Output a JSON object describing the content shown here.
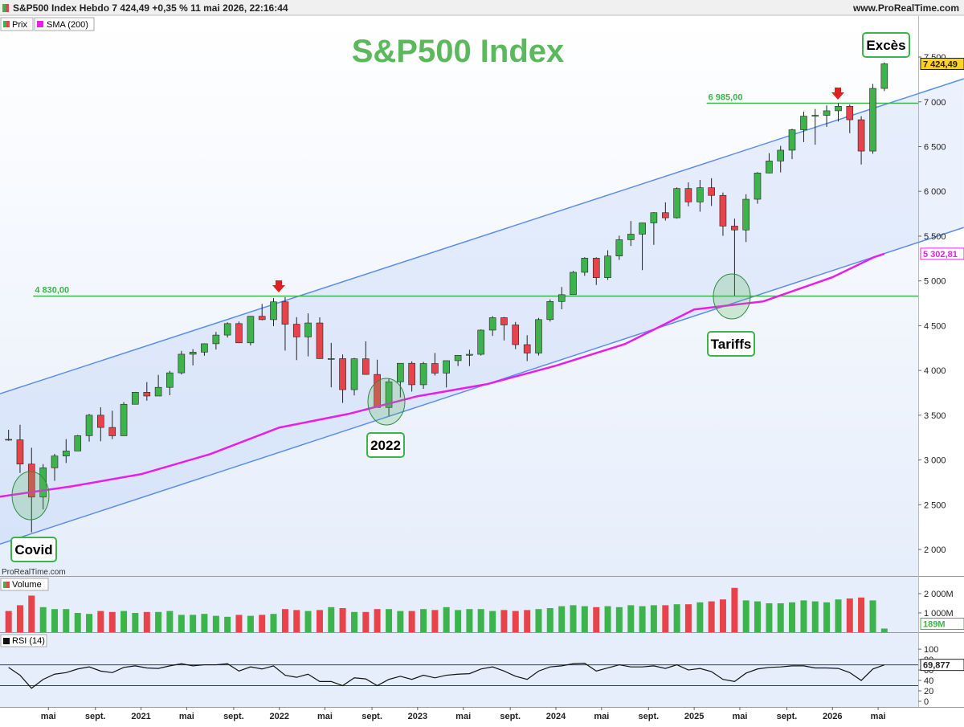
{
  "header": {
    "title": "S&P500 Index Hebdo 7 424,49 +0,35 % 11 mai 2026, 22:16:44",
    "site": "www.ProRealTime.com",
    "watermark": "ProRealTime.com"
  },
  "annotations": [
    "Covid",
    "2022",
    "Tariffs",
    "Excès"
  ],
  "chart_data": [
    {
      "type": "candlestick",
      "title": "S&P500 Index",
      "x": [
        2020.042,
        2020.125,
        2020.208,
        2020.292,
        2020.375,
        2020.458,
        2020.542,
        2020.625,
        2020.708,
        2020.792,
        2020.875,
        2020.958,
        2021.042,
        2021.125,
        2021.208,
        2021.292,
        2021.375,
        2021.458,
        2021.542,
        2021.625,
        2021.708,
        2021.792,
        2021.875,
        2021.958,
        2022.042,
        2022.125,
        2022.208,
        2022.292,
        2022.375,
        2022.458,
        2022.542,
        2022.625,
        2022.708,
        2022.792,
        2022.875,
        2022.958,
        2023.042,
        2023.125,
        2023.208,
        2023.292,
        2023.375,
        2023.458,
        2023.542,
        2023.625,
        2023.708,
        2023.792,
        2023.875,
        2023.958,
        2024.042,
        2024.125,
        2024.208,
        2024.292,
        2024.375,
        2024.458,
        2024.542,
        2024.625,
        2024.708,
        2024.792,
        2024.875,
        2024.958,
        2025.042,
        2025.125,
        2025.208,
        2025.292,
        2025.375,
        2025.458,
        2025.542,
        2025.625,
        2025.708,
        2025.792,
        2025.875,
        2025.958,
        2026.042,
        2026.125,
        2026.208,
        2026.292,
        2026.375
      ],
      "series": [
        {
          "name": "Prix",
          "up_color": "#3cb44b",
          "down_color": "#e8434a",
          "last_label": "7 424,49",
          "open": [
            3230,
            3225,
            2954,
            2585,
            2912,
            3044,
            3100,
            3271,
            3500,
            3363,
            3270,
            3622,
            3756,
            3714,
            3811,
            3973,
            4181,
            4204,
            4298,
            4395,
            4523,
            4308,
            4605,
            4567,
            4766,
            4516,
            4374,
            4530,
            4132,
            4132,
            3785,
            4130,
            3955,
            3586,
            3872,
            4080,
            3840,
            4077,
            3970,
            4109,
            4169,
            4180,
            4450,
            4589,
            4508,
            4288,
            4194,
            4568,
            4770,
            4846,
            5096,
            5254,
            5036,
            5278,
            5460,
            5522,
            5648,
            5762,
            5705,
            6032,
            5882,
            6041,
            5955,
            5612,
            5569,
            5912,
            6205,
            6339,
            6460,
            6688,
            6840,
            6849,
            6900,
            6950,
            6800,
            6450,
            7150
          ],
          "high": [
            3337,
            3393,
            3136,
            2954,
            3068,
            3233,
            3280,
            3514,
            3588,
            3550,
            3646,
            3760,
            3870,
            3950,
            3995,
            4218,
            4238,
            4302,
            4430,
            4537,
            4546,
            4608,
            4743,
            4808,
            4818,
            4595,
            4637,
            4593,
            4307,
            4178,
            4140,
            4325,
            4120,
            3906,
            4080,
            4101,
            4095,
            4195,
            4110,
            4170,
            4231,
            4458,
            4607,
            4597,
            4541,
            4393,
            4587,
            4793,
            4932,
            5111,
            5265,
            5264,
            5342,
            5505,
            5669,
            5651,
            5768,
            5878,
            6044,
            6100,
            6128,
            6147,
            5987,
            5695,
            5968,
            6215,
            6427,
            6508,
            6699,
            6890,
            6920,
            6960,
            6985,
            6970,
            6840,
            7200,
            7440
          ],
          "low": [
            3214,
            2855,
            2192,
            2447,
            2767,
            2966,
            3101,
            3205,
            3209,
            3233,
            3280,
            3633,
            3662,
            3725,
            3723,
            3955,
            4056,
            4164,
            4233,
            4367,
            4305,
            4279,
            4560,
            4495,
            4222,
            4115,
            4157,
            4129,
            3811,
            3637,
            3721,
            3955,
            3585,
            3492,
            3699,
            3764,
            3794,
            3943,
            3809,
            4049,
            4048,
            4166,
            4385,
            4335,
            4238,
            4104,
            4167,
            4546,
            4683,
            4845,
            5057,
            4954,
            5011,
            5234,
            5390,
            5120,
            5403,
            5674,
            5696,
            5832,
            5773,
            5837,
            5504,
            4835,
            5434,
            5862,
            6202,
            6212,
            6360,
            6550,
            6521,
            6720,
            6780,
            6650,
            6300,
            6420,
            7120
          ],
          "close": [
            3225,
            2954,
            2585,
            2912,
            3044,
            3100,
            3271,
            3500,
            3363,
            3270,
            3622,
            3756,
            3714,
            3811,
            3973,
            4181,
            4204,
            4298,
            4395,
            4523,
            4308,
            4605,
            4567,
            4766,
            4516,
            4374,
            4530,
            4132,
            4132,
            3785,
            4130,
            3955,
            3586,
            3872,
            4080,
            3840,
            4077,
            3970,
            4109,
            4169,
            4180,
            4450,
            4589,
            4508,
            4288,
            4194,
            4568,
            4770,
            4846,
            5096,
            5254,
            5036,
            5278,
            5460,
            5522,
            5648,
            5762,
            5705,
            6032,
            5882,
            6041,
            5955,
            5612,
            5569,
            5912,
            6205,
            6339,
            6460,
            6688,
            6840,
            6849,
            6900,
            6950,
            6800,
            6450,
            7150,
            7424.49
          ]
        },
        {
          "name": "SMA (200)",
          "color": "#e81ee8",
          "last_label": "5 302,81",
          "x": [
            2019.98,
            2020.5,
            2021,
            2021.5,
            2022,
            2022.5,
            2023,
            2023.5,
            2024,
            2024.5,
            2025,
            2025.5,
            2026,
            2026.3,
            2026.375
          ],
          "values": [
            2590,
            2706,
            2841,
            3065,
            3362,
            3514,
            3712,
            3846,
            4053,
            4295,
            4681,
            4771,
            5041,
            5265,
            5302.81
          ]
        }
      ],
      "channel": [
        {
          "x": [
            2019.98,
            2026.95
          ],
          "values": [
            3739,
            7258
          ]
        },
        {
          "x": [
            2019.98,
            2026.95
          ],
          "values": [
            2060,
            5597
          ]
        }
      ],
      "channel_color": "#5b8def",
      "levels": [
        {
          "value": 4830,
          "label": "4 830,00",
          "start": 2020.22
        },
        {
          "value": 6985,
          "label": "6 985,00",
          "start": 2025.09
        }
      ],
      "level_color": "#3cb44b",
      "xlim": [
        2019.98,
        2026.62
      ],
      "ylim": [
        1704,
        7958
      ],
      "yticks": [
        {
          "value": 2000,
          "label": "2 000"
        },
        {
          "value": 2500,
          "label": "2 500"
        },
        {
          "value": 3000,
          "label": "3 000"
        },
        {
          "value": 3500,
          "label": "3 500"
        },
        {
          "value": 4000,
          "label": "4 000"
        },
        {
          "value": 4500,
          "label": "4 500"
        },
        {
          "value": 5000,
          "label": "5 000"
        },
        {
          "value": 5500,
          "label": "5 500"
        },
        {
          "value": 6000,
          "label": "6 000"
        },
        {
          "value": 6500,
          "label": "6 500"
        },
        {
          "value": 7000,
          "label": "7 000"
        },
        {
          "value": 7500,
          "label": "7 500"
        }
      ]
    },
    {
      "type": "bar",
      "title": "Volume",
      "up_color": "#3cb44b",
      "down_color": "#e8434a",
      "last_label": "189M",
      "x": [
        2020.042,
        2020.125,
        2020.208,
        2020.292,
        2020.375,
        2020.458,
        2020.542,
        2020.625,
        2020.708,
        2020.792,
        2020.875,
        2020.958,
        2021.042,
        2021.125,
        2021.208,
        2021.292,
        2021.375,
        2021.458,
        2021.542,
        2021.625,
        2021.708,
        2021.792,
        2021.875,
        2021.958,
        2022.042,
        2022.125,
        2022.208,
        2022.292,
        2022.375,
        2022.458,
        2022.542,
        2022.625,
        2022.708,
        2022.792,
        2022.875,
        2022.958,
        2023.042,
        2023.125,
        2023.208,
        2023.292,
        2023.375,
        2023.458,
        2023.542,
        2023.625,
        2023.708,
        2023.792,
        2023.875,
        2023.958,
        2024.042,
        2024.125,
        2024.208,
        2024.292,
        2024.375,
        2024.458,
        2024.542,
        2024.625,
        2024.708,
        2024.792,
        2024.875,
        2024.958,
        2025.042,
        2025.125,
        2025.208,
        2025.292,
        2025.375,
        2025.458,
        2025.542,
        2025.625,
        2025.708,
        2025.792,
        2025.875,
        2025.958,
        2026.042,
        2026.125,
        2026.208,
        2026.292,
        2026.375
      ],
      "values": [
        1100,
        1400,
        1900,
        1300,
        1200,
        1200,
        1000,
        950,
        1100,
        1050,
        1100,
        1000,
        1050,
        1050,
        1100,
        900,
        900,
        950,
        850,
        800,
        900,
        850,
        900,
        950,
        1200,
        1150,
        1100,
        1150,
        1300,
        1250,
        1050,
        1050,
        1200,
        1200,
        1100,
        1100,
        1200,
        1150,
        1300,
        1150,
        1200,
        1200,
        1100,
        1150,
        1100,
        1150,
        1200,
        1250,
        1350,
        1400,
        1350,
        1300,
        1350,
        1300,
        1400,
        1350,
        1400,
        1400,
        1450,
        1450,
        1550,
        1600,
        1700,
        2300,
        1650,
        1600,
        1500,
        1500,
        1550,
        1650,
        1600,
        1550,
        1700,
        1750,
        1800,
        1650,
        189
      ],
      "xlim": [
        2019.98,
        2026.62
      ],
      "ylim": [
        0,
        2875
      ],
      "yticks": [
        {
          "value": 1000,
          "label": "1 000M"
        },
        {
          "value": 2000,
          "label": "2 000M"
        }
      ]
    },
    {
      "type": "line",
      "title": "RSI (14)",
      "color": "#111111",
      "last_label": "69,877",
      "x": [
        2020.042,
        2020.125,
        2020.208,
        2020.292,
        2020.375,
        2020.458,
        2020.542,
        2020.625,
        2020.708,
        2020.792,
        2020.875,
        2020.958,
        2021.042,
        2021.125,
        2021.208,
        2021.292,
        2021.375,
        2021.458,
        2021.542,
        2021.625,
        2021.708,
        2021.792,
        2021.875,
        2021.958,
        2022.042,
        2022.125,
        2022.208,
        2022.292,
        2022.375,
        2022.458,
        2022.542,
        2022.625,
        2022.708,
        2022.792,
        2022.875,
        2022.958,
        2023.042,
        2023.125,
        2023.208,
        2023.292,
        2023.375,
        2023.458,
        2023.542,
        2023.625,
        2023.708,
        2023.792,
        2023.875,
        2023.958,
        2024.042,
        2024.125,
        2024.208,
        2024.292,
        2024.375,
        2024.458,
        2024.542,
        2024.625,
        2024.708,
        2024.792,
        2024.875,
        2024.958,
        2025.042,
        2025.125,
        2025.208,
        2025.292,
        2025.375,
        2025.458,
        2025.542,
        2025.625,
        2025.708,
        2025.792,
        2025.875,
        2025.958,
        2026.042,
        2026.125,
        2026.208,
        2026.292,
        2026.375
      ],
      "values": [
        65,
        50,
        25,
        42,
        52,
        55,
        62,
        66,
        58,
        55,
        65,
        68,
        64,
        63,
        68,
        72,
        68,
        70,
        70,
        72,
        58,
        66,
        62,
        68,
        50,
        46,
        52,
        38,
        38,
        30,
        45,
        43,
        30,
        42,
        48,
        42,
        50,
        45,
        50,
        52,
        53,
        62,
        66,
        58,
        48,
        42,
        58,
        66,
        68,
        72,
        73,
        58,
        64,
        70,
        66,
        66,
        68,
        63,
        70,
        60,
        63,
        57,
        42,
        38,
        54,
        62,
        65,
        66,
        68,
        68,
        64,
        64,
        63,
        55,
        40,
        62,
        69.877
      ],
      "levels": [
        30,
        70
      ],
      "level_color": "#2b3a8c",
      "xlim": [
        2019.98,
        2026.62
      ],
      "ylim": [
        -10.8,
        131
      ],
      "yticks": [
        0,
        20,
        40,
        60,
        80,
        100
      ],
      "xticks": [
        {
          "value": 2020.33,
          "label": "mai"
        },
        {
          "value": 2020.67,
          "label": "sept."
        },
        2021,
        {
          "value": 2021.33,
          "label": "mai"
        },
        {
          "value": 2021.67,
          "label": "sept."
        },
        2022,
        {
          "value": 2022.33,
          "label": "mai"
        },
        {
          "value": 2022.67,
          "label": "sept."
        },
        2023,
        {
          "value": 2023.33,
          "label": "mai"
        },
        {
          "value": 2023.67,
          "label": "sept."
        },
        2024,
        {
          "value": 2024.33,
          "label": "mai"
        },
        {
          "value": 2024.67,
          "label": "sept."
        },
        2025,
        {
          "value": 2025.33,
          "label": "mai"
        },
        {
          "value": 2025.67,
          "label": "sept."
        },
        2026,
        {
          "value": 2026.33,
          "label": "mai"
        }
      ]
    }
  ]
}
